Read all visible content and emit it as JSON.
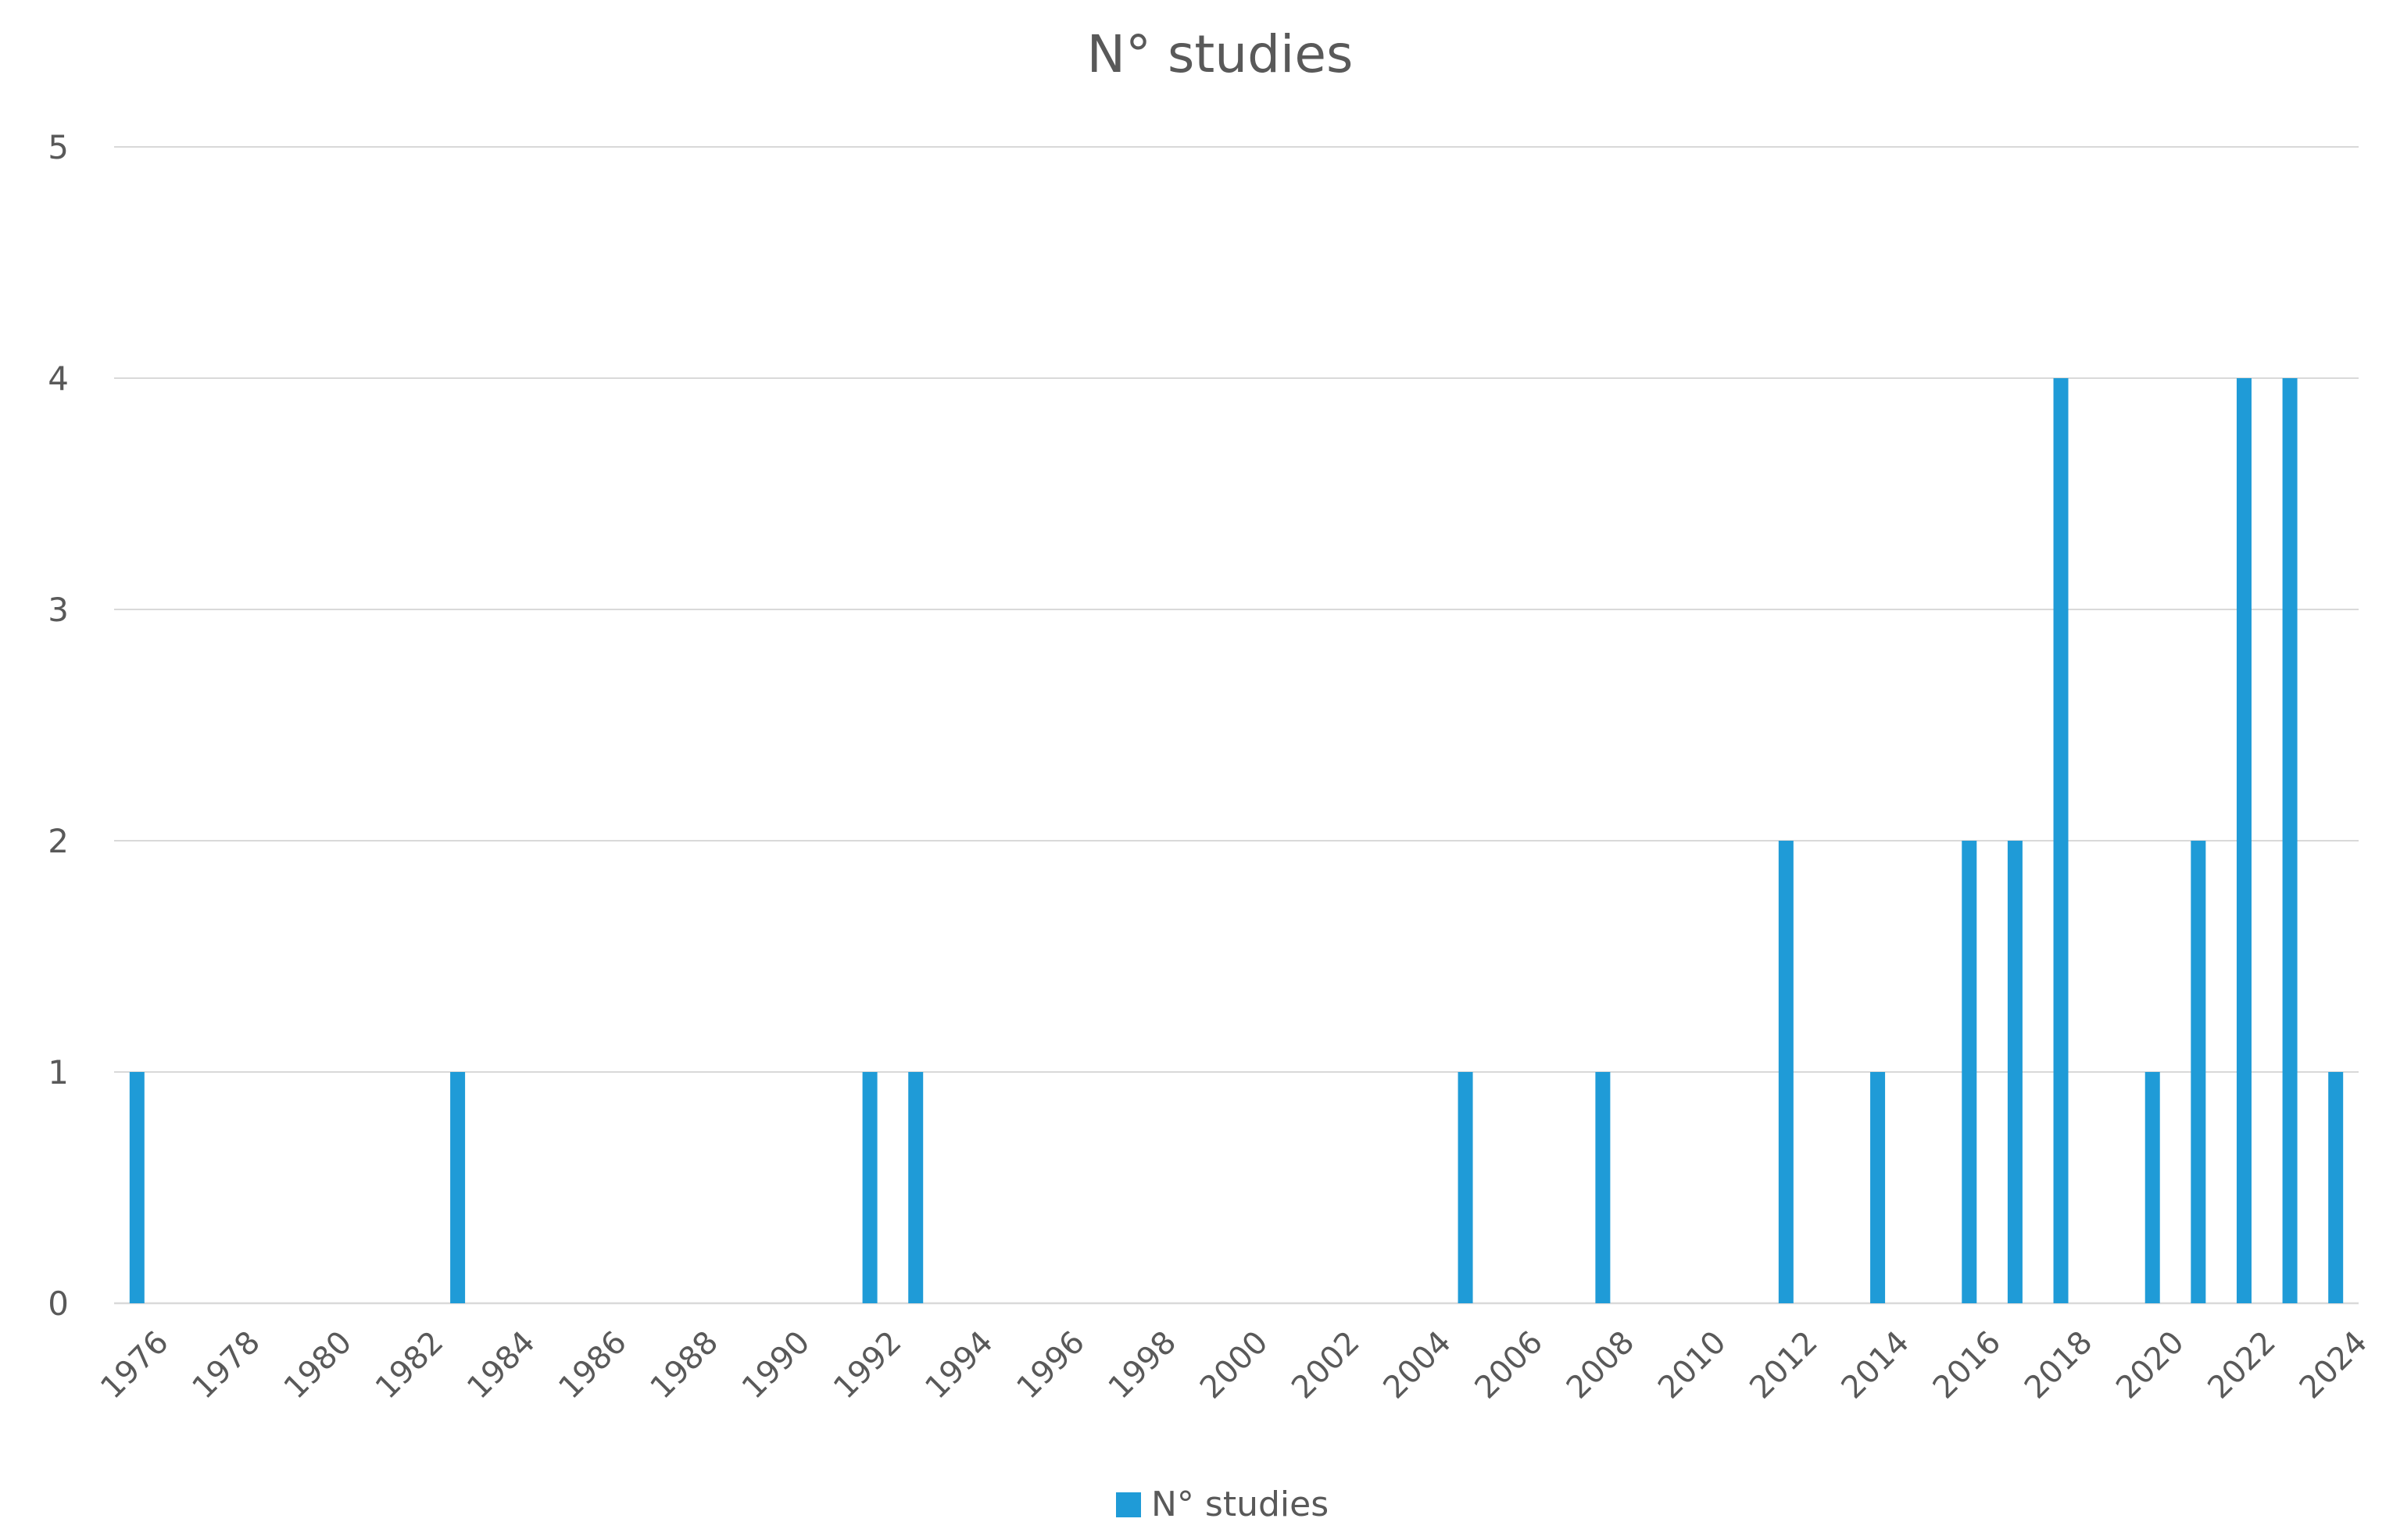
{
  "chart_data": {
    "type": "bar",
    "title": "N° studies",
    "xlabel": "",
    "ylabel": "",
    "ylim": [
      0,
      5
    ],
    "y_ticks": [
      0,
      1,
      2,
      3,
      4,
      5
    ],
    "categories": [
      "1976",
      "1977",
      "1978",
      "1979",
      "1980",
      "1981",
      "1982",
      "1983",
      "1984",
      "1985",
      "1986",
      "1987",
      "1988",
      "1989",
      "1990",
      "1991",
      "1992",
      "1993",
      "1994",
      "1995",
      "1996",
      "1997",
      "1998",
      "1999",
      "2000",
      "2001",
      "2002",
      "2003",
      "2004",
      "2005",
      "2006",
      "2007",
      "2008",
      "2009",
      "2010",
      "2011",
      "2012",
      "2013",
      "2014",
      "2015",
      "2016",
      "2017",
      "2018",
      "2019",
      "2020",
      "2021",
      "2022",
      "2023",
      "2024"
    ],
    "x_tick_labels": [
      "1976",
      "1978",
      "1980",
      "1982",
      "1984",
      "1986",
      "1988",
      "1990",
      "1992",
      "1994",
      "1996",
      "1998",
      "2000",
      "2002",
      "2004",
      "2006",
      "2008",
      "2010",
      "2012",
      "2014",
      "2016",
      "2018",
      "2020",
      "2022",
      "2024"
    ],
    "series": [
      {
        "name": "N° studies",
        "color": "#1f9bd7",
        "values": [
          1,
          0,
          0,
          0,
          0,
          0,
          0,
          1,
          0,
          0,
          0,
          0,
          0,
          0,
          0,
          0,
          1,
          1,
          0,
          0,
          0,
          0,
          0,
          0,
          0,
          0,
          0,
          0,
          0,
          1,
          0,
          0,
          1,
          0,
          0,
          0,
          2,
          0,
          1,
          0,
          2,
          2,
          4,
          0,
          1,
          2,
          4,
          4,
          1
        ]
      }
    ],
    "grid": true,
    "legend_position": "bottom"
  }
}
